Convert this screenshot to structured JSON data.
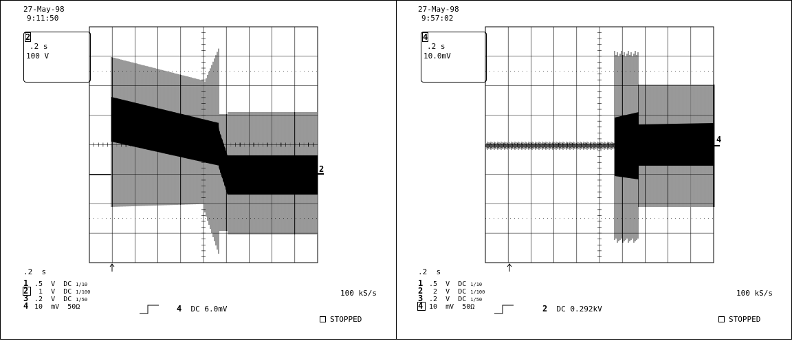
{
  "panels": [
    {
      "date": "27-May-98",
      "time": "9:11:50",
      "box_channel": "2",
      "box_timebase": ".2 s",
      "box_scale": "100 V",
      "timebase_label": ".2  s",
      "trace_marker": "2",
      "channels": [
        {
          "num": "1",
          "scale": ".5",
          "unit": "V",
          "coupling": "DC",
          "probe": "1/10",
          "selected": false
        },
        {
          "num": "2",
          "scale": " 1",
          "unit": "V",
          "coupling": "DC",
          "probe": "1/100",
          "selected": true
        },
        {
          "num": "3",
          "scale": ".2",
          "unit": "V",
          "coupling": "DC",
          "probe": "1/50",
          "selected": false
        },
        {
          "num": "4",
          "scale": "10",
          "unit": "mV",
          "coupling": "50Ω",
          "probe": "",
          "selected": false
        }
      ],
      "trigger_channel": "4",
      "trigger_text": "DC 6.0mV",
      "sample_rate": "100 kS/s",
      "status": "STOPPED"
    },
    {
      "date": "27-May-98",
      "time": "9:57:02",
      "box_channel": "4",
      "box_timebase": ".2 s",
      "box_scale": "10.0mV",
      "timebase_label": ".2  s",
      "trace_marker": "4",
      "channels": [
        {
          "num": "1",
          "scale": ".5",
          "unit": "V",
          "coupling": "DC",
          "probe": "1/10",
          "selected": false
        },
        {
          "num": "2",
          "scale": " 2",
          "unit": "V",
          "coupling": "DC",
          "probe": "1/100",
          "selected": false
        },
        {
          "num": "3",
          "scale": ".2",
          "unit": "V",
          "coupling": "DC",
          "probe": "1/50",
          "selected": false
        },
        {
          "num": "4",
          "scale": "10",
          "unit": "mV",
          "coupling": "50Ω",
          "probe": "",
          "selected": true
        }
      ],
      "trigger_channel": "2",
      "trigger_text": "DC 0.292kV",
      "sample_rate": "100 kS/s",
      "status": "STOPPED"
    }
  ]
}
